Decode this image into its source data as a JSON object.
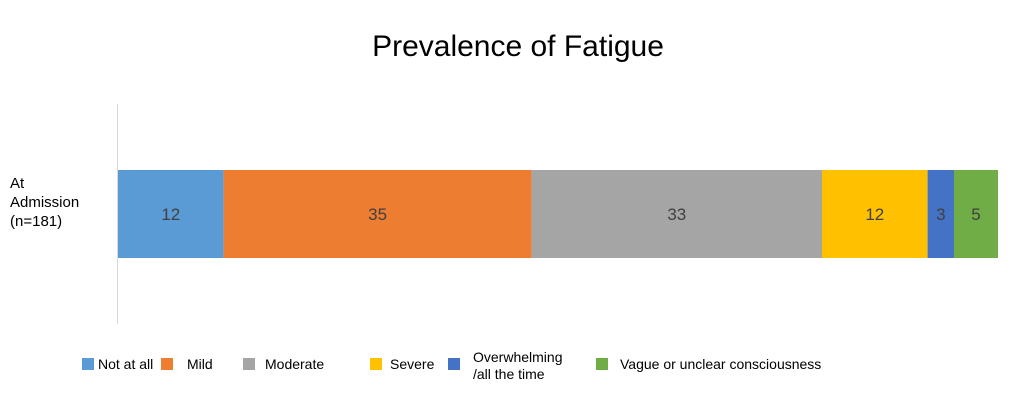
{
  "chart_data": {
    "type": "bar",
    "orientation": "horizontal",
    "stacked": true,
    "title": "Prevalence of Fatigue",
    "categories": [
      "At\nAdmission\n(n=181)"
    ],
    "series": [
      {
        "name": "Not at all",
        "values": [
          12
        ],
        "color": "#5B9BD5"
      },
      {
        "name": "Mild",
        "values": [
          35
        ],
        "color": "#ED7D31"
      },
      {
        "name": "Moderate",
        "values": [
          33
        ],
        "color": "#A5A5A5"
      },
      {
        "name": "Severe",
        "values": [
          12
        ],
        "color": "#FFC000"
      },
      {
        "name": "Overwhelming\n/all the time",
        "values": [
          3
        ],
        "color": "#4472C4"
      },
      {
        "name": "Vague or unclear consciousness",
        "values": [
          5
        ],
        "color": "#70AD47"
      }
    ],
    "data_labels": true,
    "legend": "bottom",
    "grid": false
  }
}
